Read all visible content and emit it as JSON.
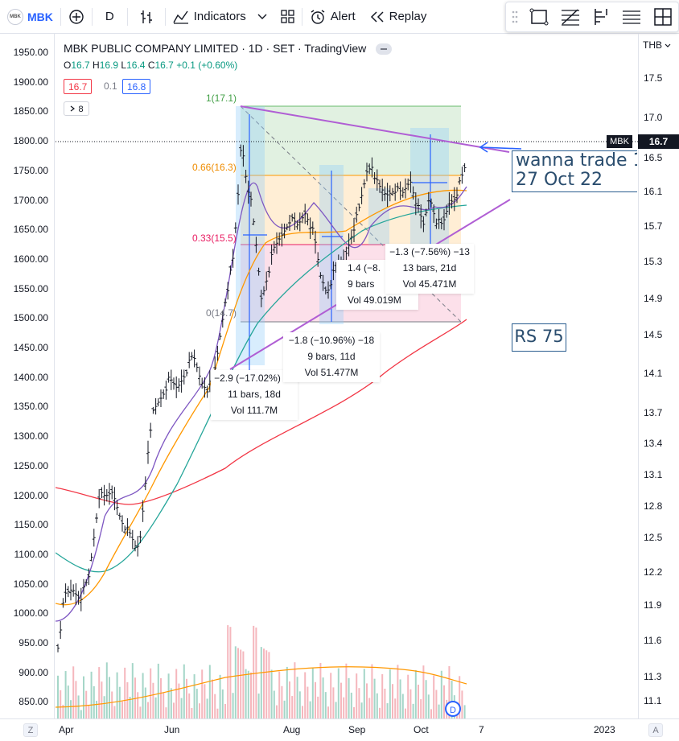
{
  "toolbar": {
    "symbol": "MBK",
    "logo_text": "MBK",
    "interval": "D",
    "indicators_label": "Indicators",
    "alert_label": "Alert",
    "replay_label": "Replay"
  },
  "legend": {
    "title": "MBK PUBLIC COMPANY LIMITED · 1D · SET · TradingView",
    "ohlc_o_label": "O",
    "ohlc_o": "16.7",
    "ohlc_h_label": "H",
    "ohlc_h": "16.9",
    "ohlc_l_label": "L",
    "ohlc_l": "16.4",
    "ohlc_c_label": "C",
    "ohlc_c": "16.7",
    "ohlc_change": "+0.1 (+0.60%)",
    "sell_price": "16.7",
    "spread": "0.1",
    "buy_price": "16.8",
    "indicators_count": "8"
  },
  "left_axis": [
    "1950.00",
    "1900.00",
    "1850.00",
    "1800.00",
    "1750.00",
    "1700.00",
    "1650.00",
    "1600.00",
    "1550.00",
    "1500.00",
    "1450.00",
    "1400.00",
    "1350.00",
    "1300.00",
    "1250.00",
    "1200.00",
    "1150.00",
    "1100.00",
    "1050.00",
    "1000.00",
    "950.00",
    "900.00",
    "850.00"
  ],
  "right_axis": {
    "currency": "THB",
    "ticks": [
      "17.5",
      "17.0",
      "16.5",
      "16.1",
      "15.7",
      "15.3",
      "14.9",
      "14.5",
      "14.1",
      "13.7",
      "13.4",
      "13.1",
      "12.8",
      "12.5",
      "12.2",
      "11.9",
      "11.6",
      "11.3",
      "11.1"
    ],
    "current_price": "16.7",
    "symbol_tag": "MBK"
  },
  "time_axis": [
    "Apr",
    "Jun",
    "Aug",
    "Sep",
    "Oct",
    "7",
    "2023"
  ],
  "fib": {
    "level_1": "1(17.1)",
    "level_066": "0.66(16.3)",
    "level_033": "0.33(15.5)",
    "level_0": "0(14.7)"
  },
  "stats": [
    {
      "line1": "−2.9 (−17.02%) −2",
      "line2": "11 bars, 18d",
      "line3": "Vol 111.7M"
    },
    {
      "line1": "−1.8 (−10.96%) −18",
      "line2": "9 bars, 11d",
      "line3": "Vol 51.477M"
    },
    {
      "line1": "1.4 (−8.",
      "line2": "9 bars",
      "line3": "Vol 49.019M"
    },
    {
      "line1": "−1.3 (−7.56%) −13",
      "line2": "13 bars, 21d",
      "line3": "Vol 45.471M"
    }
  ],
  "notes": {
    "trade_line1": "wanna trade 1",
    "trade_line2": "27 Oct 22",
    "rs": "RS 75"
  },
  "bottom": {
    "left_button": "Z",
    "right_button": "A",
    "dividend_badge": "D"
  },
  "colors": {
    "up": "#089981",
    "down": "#f23645",
    "accent": "#2962ff",
    "trendline": "#b05ed4"
  }
}
